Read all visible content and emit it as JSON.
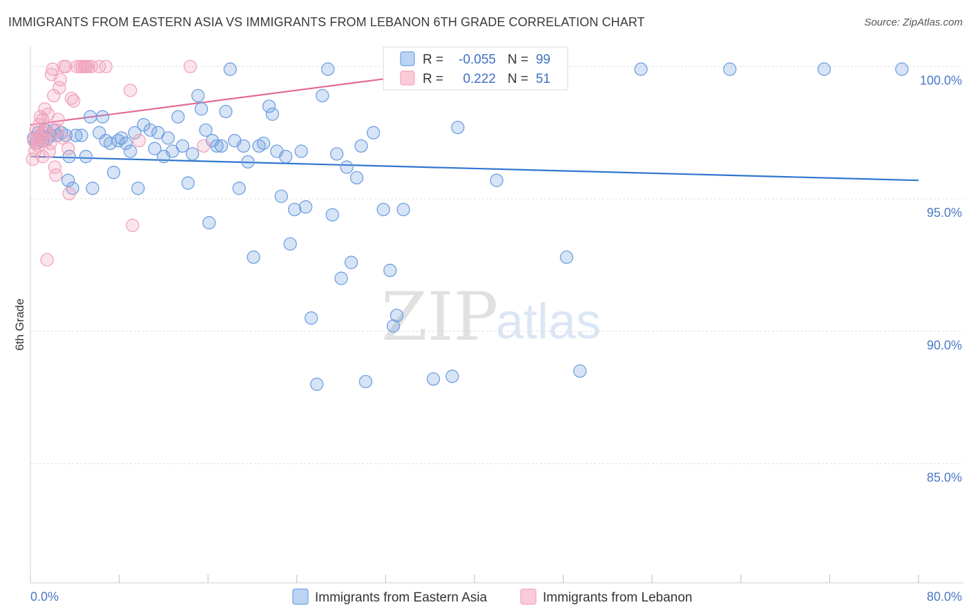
{
  "title": "IMMIGRANTS FROM EASTERN ASIA VS IMMIGRANTS FROM LEBANON 6TH GRADE CORRELATION CHART",
  "source": "Source: ZipAtlas.com",
  "watermark": {
    "zip": "ZIP",
    "atlas": "atlas"
  },
  "chart_data": {
    "type": "scatter",
    "title": "IMMIGRANTS FROM EASTERN ASIA VS IMMIGRANTS FROM LEBANON 6TH GRADE CORRELATION CHART",
    "ylabel": "6th Grade",
    "xlabel": "",
    "xlim": [
      0,
      80
    ],
    "ylim": [
      80.5,
      101
    ],
    "x_tick_labels": [
      "0.0%",
      "80.0%"
    ],
    "y_ticks": [
      85,
      90,
      95,
      100
    ],
    "y_tick_labels": [
      "85.0%",
      "90.0%",
      "95.0%",
      "100.0%"
    ],
    "grid": true,
    "legend_position": "bottom",
    "stats_box_position": "top-center",
    "series": [
      {
        "name": "Immigrants from Eastern Asia",
        "color": "#6f9fe0",
        "line_color": "#2f75cf",
        "R": "-0.055",
        "N": "99",
        "trend": {
          "x": [
            0,
            80
          ],
          "y": [
            96.6,
            95.7
          ]
        },
        "points": [
          [
            0.3,
            97.3
          ],
          [
            0.5,
            97.1
          ],
          [
            0.7,
            97.5
          ],
          [
            0.9,
            97.4
          ],
          [
            1.1,
            97.2
          ],
          [
            1.3,
            97.6
          ],
          [
            1.6,
            97.3
          ],
          [
            1.8,
            97.4
          ],
          [
            2.1,
            97.6
          ],
          [
            2.4,
            97.4
          ],
          [
            2.8,
            97.5
          ],
          [
            3.2,
            97.4
          ],
          [
            3.4,
            95.7
          ],
          [
            3.5,
            96.6
          ],
          [
            3.8,
            95.4
          ],
          [
            4.1,
            97.4
          ],
          [
            4.6,
            97.4
          ],
          [
            5.0,
            96.6
          ],
          [
            5.4,
            98.1
          ],
          [
            5.6,
            95.4
          ],
          [
            6.2,
            97.5
          ],
          [
            6.5,
            98.1
          ],
          [
            6.8,
            97.2
          ],
          [
            7.2,
            97.1
          ],
          [
            7.5,
            96.0
          ],
          [
            7.9,
            97.2
          ],
          [
            8.2,
            97.3
          ],
          [
            8.6,
            97.1
          ],
          [
            9.0,
            96.8
          ],
          [
            9.4,
            97.5
          ],
          [
            9.7,
            95.4
          ],
          [
            10.2,
            97.8
          ],
          [
            10.8,
            97.6
          ],
          [
            11.2,
            96.9
          ],
          [
            11.5,
            97.5
          ],
          [
            12.0,
            96.6
          ],
          [
            12.4,
            97.3
          ],
          [
            12.8,
            96.8
          ],
          [
            13.3,
            98.1
          ],
          [
            13.7,
            97.0
          ],
          [
            14.2,
            95.6
          ],
          [
            14.6,
            96.7
          ],
          [
            15.1,
            98.9
          ],
          [
            15.4,
            98.4
          ],
          [
            15.8,
            97.6
          ],
          [
            16.1,
            94.1
          ],
          [
            16.4,
            97.2
          ],
          [
            16.8,
            97.0
          ],
          [
            17.2,
            97.0
          ],
          [
            17.6,
            98.3
          ],
          [
            18.0,
            99.9
          ],
          [
            18.4,
            97.2
          ],
          [
            18.8,
            95.4
          ],
          [
            19.2,
            97.0
          ],
          [
            19.6,
            96.4
          ],
          [
            20.1,
            92.8
          ],
          [
            20.6,
            97.0
          ],
          [
            21.0,
            97.1
          ],
          [
            21.5,
            98.5
          ],
          [
            21.8,
            98.2
          ],
          [
            22.2,
            96.8
          ],
          [
            22.6,
            95.1
          ],
          [
            23.0,
            96.6
          ],
          [
            23.4,
            93.3
          ],
          [
            23.8,
            94.6
          ],
          [
            24.4,
            96.8
          ],
          [
            24.8,
            94.7
          ],
          [
            25.3,
            90.5
          ],
          [
            25.8,
            88.0
          ],
          [
            26.3,
            98.9
          ],
          [
            26.8,
            99.9
          ],
          [
            27.2,
            94.4
          ],
          [
            27.6,
            96.7
          ],
          [
            28.0,
            92.0
          ],
          [
            28.5,
            96.2
          ],
          [
            28.9,
            92.6
          ],
          [
            29.4,
            95.8
          ],
          [
            29.8,
            97.0
          ],
          [
            30.2,
            88.1
          ],
          [
            30.9,
            97.5
          ],
          [
            31.8,
            94.6
          ],
          [
            32.4,
            92.3
          ],
          [
            32.7,
            90.2
          ],
          [
            33.0,
            90.6
          ],
          [
            33.6,
            94.6
          ],
          [
            34.2,
            99.9
          ],
          [
            36.3,
            88.2
          ],
          [
            37.6,
            99.9
          ],
          [
            38.0,
            88.3
          ],
          [
            38.5,
            97.7
          ],
          [
            42.0,
            95.7
          ],
          [
            44.2,
            99.9
          ],
          [
            48.3,
            92.8
          ],
          [
            49.5,
            88.5
          ],
          [
            55.0,
            99.9
          ],
          [
            63.0,
            99.9
          ],
          [
            71.5,
            99.9
          ],
          [
            78.5,
            99.9
          ],
          [
            0.9,
            97.3
          ]
        ]
      },
      {
        "name": "Immigrants from Lebanon",
        "color": "#f2a3bb",
        "line_color": "#e46a93",
        "R": "0.222",
        "N": "51",
        "trend": {
          "x": [
            0,
            46
          ],
          "y": [
            97.8,
            100.3
          ]
        },
        "points": [
          [
            0.2,
            96.5
          ],
          [
            0.3,
            97.2
          ],
          [
            0.4,
            96.8
          ],
          [
            0.5,
            97.6
          ],
          [
            0.6,
            97.3
          ],
          [
            0.7,
            97.0
          ],
          [
            0.8,
            97.8
          ],
          [
            0.9,
            98.1
          ],
          [
            1.0,
            97.4
          ],
          [
            1.1,
            98.0
          ],
          [
            1.2,
            97.5
          ],
          [
            1.3,
            98.4
          ],
          [
            1.4,
            97.2
          ],
          [
            1.5,
            97.6
          ],
          [
            1.6,
            98.2
          ],
          [
            1.7,
            96.8
          ],
          [
            1.8,
            97.1
          ],
          [
            1.9,
            99.7
          ],
          [
            2.0,
            99.9
          ],
          [
            2.1,
            98.9
          ],
          [
            2.2,
            96.2
          ],
          [
            2.3,
            95.9
          ],
          [
            2.4,
            97.6
          ],
          [
            2.5,
            98.0
          ],
          [
            2.6,
            99.2
          ],
          [
            2.7,
            99.5
          ],
          [
            2.9,
            97.3
          ],
          [
            3.0,
            100.0
          ],
          [
            3.2,
            100.0
          ],
          [
            3.4,
            96.9
          ],
          [
            3.5,
            95.2
          ],
          [
            3.7,
            98.8
          ],
          [
            3.9,
            98.7
          ],
          [
            4.2,
            100.0
          ],
          [
            4.5,
            100.0
          ],
          [
            4.7,
            100.0
          ],
          [
            4.9,
            100.0
          ],
          [
            5.0,
            100.0
          ],
          [
            5.2,
            100.0
          ],
          [
            5.5,
            100.0
          ],
          [
            6.2,
            100.0
          ],
          [
            6.8,
            100.0
          ],
          [
            9.0,
            99.1
          ],
          [
            9.2,
            94.0
          ],
          [
            9.8,
            97.2
          ],
          [
            14.4,
            100.0
          ],
          [
            15.6,
            97.0
          ],
          [
            1.5,
            92.7
          ],
          [
            0.6,
            97.1
          ],
          [
            0.9,
            97.3
          ],
          [
            1.1,
            96.6
          ]
        ]
      }
    ]
  }
}
